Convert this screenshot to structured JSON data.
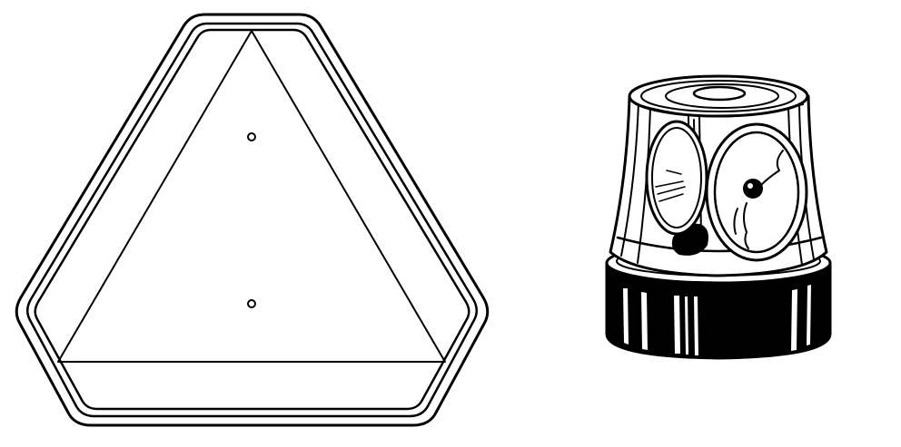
{
  "figure": {
    "items": [
      {
        "icon": "slow-moving-vehicle-triangle-icon"
      },
      {
        "icon": "rotating-beacon-light-icon"
      }
    ],
    "colors": {
      "ink": "#000000",
      "paper": "#ffffff"
    }
  }
}
